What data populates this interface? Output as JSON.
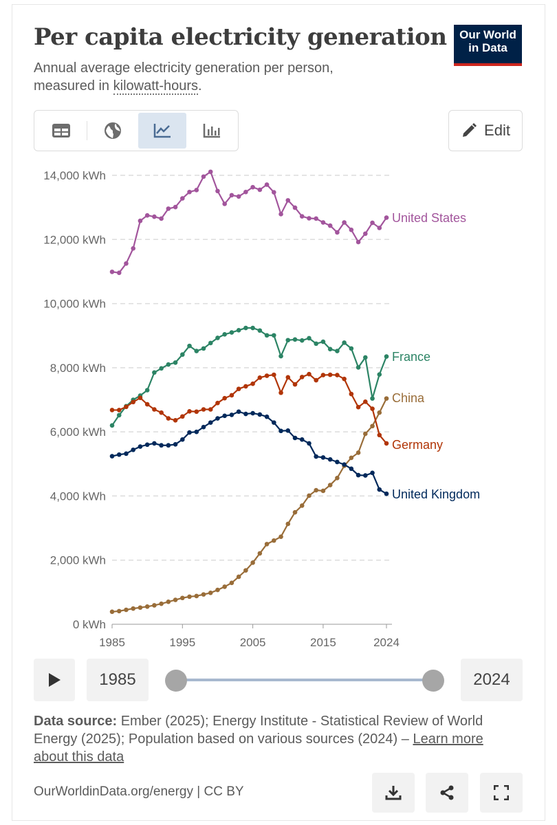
{
  "header": {
    "title": "Per capita electricity generation",
    "subtitle_prefix": "Annual average electricity generation per person,",
    "subtitle_measured": "measured in ",
    "subtitle_unit_link": "kilowatt-hours",
    "subtitle_end": ".",
    "logo_line1": "Our World",
    "logo_line2": "in Data"
  },
  "toolbar": {
    "tabs": [
      "table",
      "map",
      "line-chart",
      "bar-chart"
    ],
    "active_tab": "line-chart",
    "edit_label": "Edit"
  },
  "chart_data": {
    "type": "line",
    "title": "Per capita electricity generation",
    "ylabel": "kWh",
    "ylim": [
      0,
      14000
    ],
    "yticks": [
      0,
      2000,
      4000,
      6000,
      8000,
      10000,
      12000,
      14000
    ],
    "ytick_labels": [
      "0 kWh",
      "2,000 kWh",
      "4,000 kWh",
      "6,000 kWh",
      "8,000 kWh",
      "10,000 kWh",
      "12,000 kWh",
      "14,000 kWh"
    ],
    "xlim": [
      1985,
      2024
    ],
    "xticks": [
      1985,
      1995,
      2005,
      2015,
      2024
    ],
    "xtick_labels": [
      "1985",
      "1995",
      "2005",
      "2015",
      "2024"
    ],
    "x_start": 1985,
    "series": [
      {
        "name": "United States",
        "color": "#a2559c",
        "values": [
          10990,
          10960,
          11250,
          11720,
          12580,
          12750,
          12710,
          12650,
          12960,
          13010,
          13280,
          13480,
          13540,
          13960,
          14110,
          13510,
          13110,
          13380,
          13340,
          13480,
          13630,
          13550,
          13710,
          13470,
          12790,
          13220,
          12990,
          12720,
          12660,
          12650,
          12530,
          12430,
          12220,
          12530,
          12300,
          11920,
          12180,
          12520,
          12360,
          12680
        ]
      },
      {
        "name": "France",
        "color": "#2c8465",
        "values": [
          6200,
          6520,
          6800,
          7000,
          7130,
          7300,
          7850,
          7980,
          8100,
          8160,
          8410,
          8680,
          8520,
          8600,
          8770,
          8930,
          9040,
          9100,
          9170,
          9240,
          9240,
          9160,
          9010,
          9010,
          8360,
          8860,
          8880,
          8850,
          8920,
          8750,
          8810,
          8580,
          8520,
          8780,
          8600,
          8010,
          8320,
          7040,
          7790,
          8350
        ]
      },
      {
        "name": "China",
        "color": "#996d39",
        "values": [
          390,
          410,
          450,
          490,
          520,
          550,
          590,
          640,
          700,
          760,
          820,
          860,
          880,
          930,
          980,
          1070,
          1170,
          1290,
          1480,
          1680,
          1920,
          2210,
          2500,
          2610,
          2730,
          3130,
          3490,
          3700,
          4010,
          4180,
          4160,
          4340,
          4560,
          4940,
          5190,
          5350,
          5940,
          6180,
          6600,
          7040
        ]
      },
      {
        "name": "Germany",
        "color": "#b13507",
        "values": [
          6680,
          6680,
          6780,
          6930,
          7060,
          6860,
          6700,
          6600,
          6420,
          6360,
          6480,
          6640,
          6630,
          6700,
          6700,
          6900,
          7050,
          7140,
          7340,
          7420,
          7500,
          7690,
          7750,
          7780,
          7220,
          7700,
          7480,
          7710,
          7800,
          7610,
          7770,
          7780,
          7770,
          7650,
          7180,
          6770,
          6940,
          6720,
          5900,
          5640
        ]
      },
      {
        "name": "United Kingdom",
        "color": "#00295b",
        "values": [
          5240,
          5290,
          5320,
          5440,
          5540,
          5600,
          5640,
          5580,
          5580,
          5610,
          5760,
          5980,
          6000,
          6150,
          6290,
          6420,
          6500,
          6530,
          6630,
          6560,
          6580,
          6540,
          6470,
          6290,
          6030,
          6040,
          5810,
          5760,
          5640,
          5230,
          5200,
          5140,
          5060,
          4980,
          4850,
          4650,
          4640,
          4720,
          4200,
          4070
        ]
      }
    ]
  },
  "timeline": {
    "start_year": "1985",
    "end_year": "2024"
  },
  "source": {
    "label": "Data source:",
    "text": " Ember (2025); Energy Institute - Statistical Review of World Energy (2025); Population based on various sources (2024) – ",
    "learn_more": "Learn more about this data"
  },
  "footer": {
    "link": "OurWorldinData.org/energy | CC BY"
  }
}
